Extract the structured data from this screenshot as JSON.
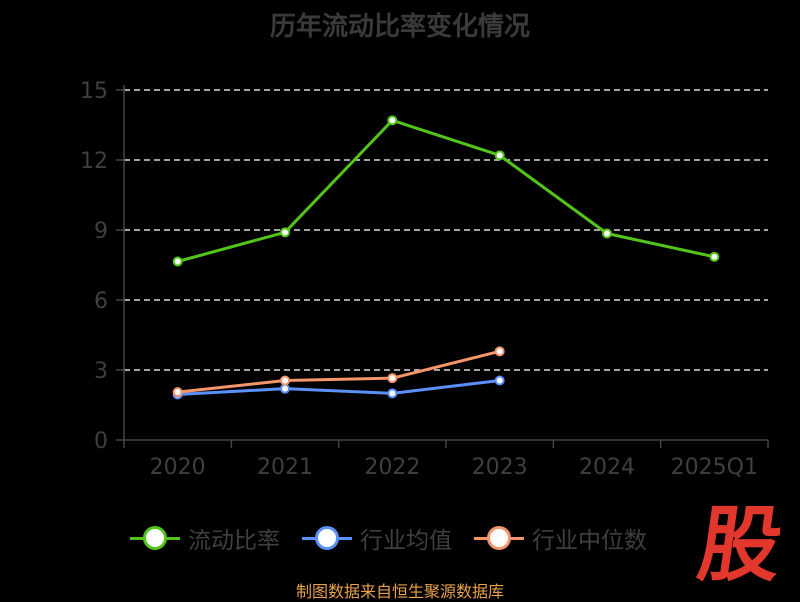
{
  "chart_data": {
    "type": "line",
    "title": "历年流动比率变化情况",
    "categories": [
      "2020",
      "2021",
      "2022",
      "2023",
      "2024",
      "2025Q1"
    ],
    "ylim": [
      0,
      15
    ],
    "yticks": [
      0,
      3,
      6,
      9,
      12,
      15
    ],
    "grid": true,
    "legend_position": "bottom",
    "series": [
      {
        "name": "流动比率",
        "color": "#52c41a",
        "values": [
          7.65,
          8.9,
          13.7,
          12.2,
          8.85,
          7.85
        ]
      },
      {
        "name": "行业均值",
        "color": "#5b8ff9",
        "values": [
          1.95,
          2.2,
          2.0,
          2.55,
          null,
          null
        ]
      },
      {
        "name": "行业中位数",
        "color": "#f6956b",
        "values": [
          2.05,
          2.55,
          2.65,
          3.8,
          null,
          null
        ]
      }
    ]
  },
  "source_text": "制图数据来自恒生聚源数据库",
  "logo_text": "股"
}
